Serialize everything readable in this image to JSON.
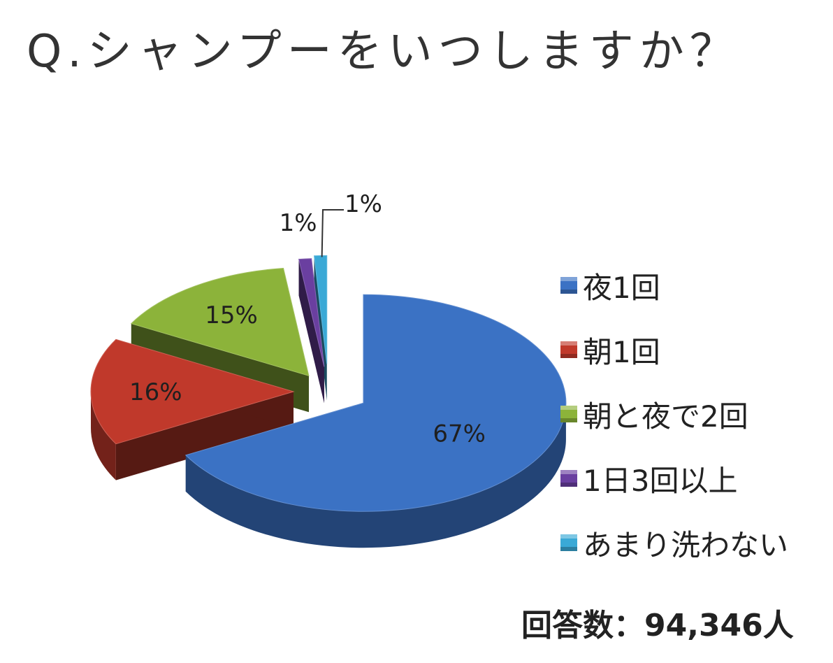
{
  "chart_data": {
    "type": "pie",
    "title": "Q.シャンプーをいつしますか？",
    "categories": [
      "夜1回",
      "朝1回",
      "朝と夜で2回",
      "1日3回以上",
      "あまり洗わない"
    ],
    "values": [
      67,
      16,
      15,
      1,
      1
    ],
    "data_labels": [
      "67%",
      "16%",
      "15%",
      "1%",
      "1%"
    ],
    "colors": [
      "#3b72c4",
      "#c0392b",
      "#8cb33a",
      "#6a3fa0",
      "#3aa9d6"
    ],
    "style": "3d-exploded",
    "legend_position": "right"
  },
  "footnote": "回答数：94,346人"
}
